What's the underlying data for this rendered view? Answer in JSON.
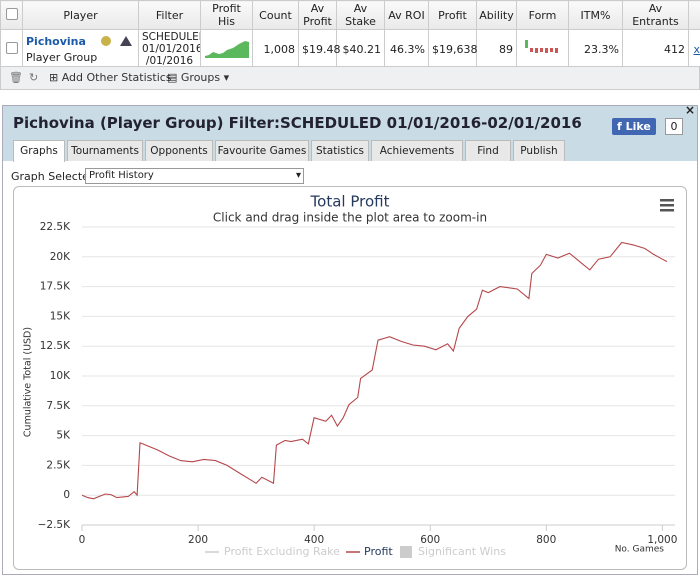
{
  "table": {
    "headers": [
      "Player",
      "Filter",
      "Profit His",
      "Count",
      "Av Profit",
      "Av Stake",
      "Av ROI",
      "Profit",
      "Ability",
      "Form",
      "ITM%",
      "Av Entrants"
    ],
    "rows": [
      {
        "player": "Pichovina",
        "player_type": "Player Group",
        "filter": [
          "SCHEDULED",
          "01/01/2016-",
          "/01/2016"
        ],
        "count": "1,008",
        "av_profit": "$19.48",
        "av_stake": "$40.21",
        "av_roi": "46.3%",
        "profit": "$19,638",
        "ability": "89",
        "itm": "23.3%",
        "av_entrants": "412",
        "remove": "x"
      }
    ]
  },
  "toolbar": {
    "add_stats": "Add Other Statistics",
    "groups": "Groups"
  },
  "panel": {
    "title": "Pichovina (Player Group) Filter:SCHEDULED 01/01/2016-02/01/2016",
    "like": "Like",
    "like_count": "0",
    "tabs": [
      "Graphs",
      "Tournaments",
      "Opponents",
      "Favourite Games",
      "Statistics",
      "Achievements",
      "Find",
      "Publish"
    ],
    "graph_selected_label": "Graph Selected:",
    "graph_selected": "Profit History"
  },
  "chart_data": {
    "type": "line",
    "title": "Total Profit",
    "subtitle": "Click and drag inside the plot area to zoom-in",
    "y_label": "Cumulative Total (USD)",
    "x_label": "No. Games",
    "x": [
      0,
      10,
      20,
      30,
      40,
      50,
      60,
      80,
      90,
      95,
      100,
      110,
      130,
      150,
      170,
      190,
      210,
      230,
      250,
      270,
      290,
      300,
      310,
      330,
      335,
      350,
      360,
      380,
      390,
      400,
      420,
      430,
      440,
      450,
      460,
      475,
      480,
      500,
      510,
      530,
      550,
      570,
      590,
      610,
      630,
      640,
      650,
      665,
      680,
      690,
      700,
      720,
      750,
      770,
      775,
      790,
      800,
      820,
      840,
      860,
      875,
      890,
      910,
      930,
      950,
      970,
      985,
      1000,
      1008
    ],
    "series": [
      {
        "name": "Profit",
        "color": "#b5474b",
        "values": [
          0,
          -200,
          -300,
          -100,
          100,
          50,
          -200,
          -100,
          300,
          0,
          4400,
          4200,
          3800,
          3300,
          2900,
          2800,
          3000,
          2900,
          2500,
          1900,
          1300,
          1000,
          1500,
          1000,
          4200,
          4600,
          4500,
          4700,
          4300,
          6500,
          6200,
          6700,
          5800,
          6500,
          7600,
          8200,
          9800,
          10500,
          13000,
          13300,
          12900,
          12600,
          12500,
          12200,
          12700,
          12100,
          14000,
          15000,
          15600,
          17200,
          17000,
          17500,
          17300,
          16500,
          18600,
          19300,
          20200,
          19900,
          20300,
          19500,
          18900,
          19800,
          20000,
          21200,
          21000,
          20700,
          20200,
          19800,
          19600
        ]
      }
    ],
    "legend_hidden": [
      "Profit Excluding Rake",
      "Significant Wins"
    ],
    "xlim": [
      0,
      1008
    ],
    "xticks": [
      0,
      200,
      400,
      600,
      800,
      {
        "value": 1000,
        "label": "1,000"
      }
    ],
    "ylim": [
      -2500,
      22500
    ],
    "yticks": [
      {
        "value": -2500,
        "label": "−2.5K"
      },
      0,
      {
        "value": 2500,
        "label": "2.5K"
      },
      {
        "value": 5000,
        "label": "5K"
      },
      {
        "value": 7500,
        "label": "7.5K"
      },
      {
        "value": 10000,
        "label": "10K"
      },
      {
        "value": 12500,
        "label": "12.5K"
      },
      {
        "value": 15000,
        "label": "15K"
      },
      {
        "value": 17500,
        "label": "17.5K"
      },
      {
        "value": 20000,
        "label": "20K"
      },
      {
        "value": 22500,
        "label": "22.5K"
      }
    ],
    "grid": true
  }
}
